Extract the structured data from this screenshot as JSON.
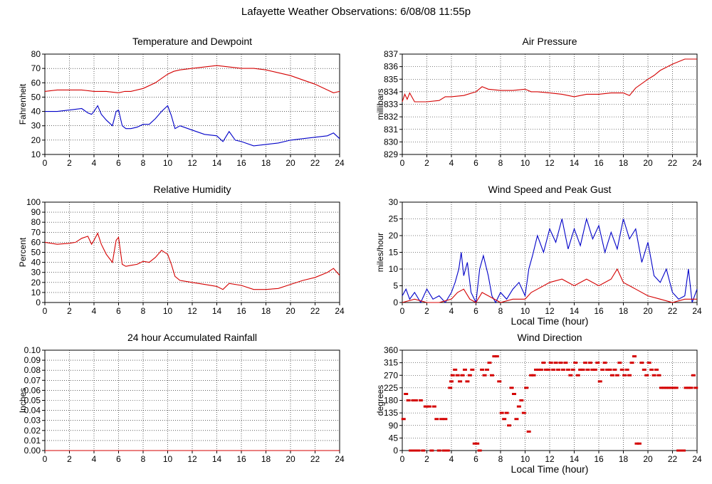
{
  "page": {
    "title": "Lafayette Weather Observations: 6/08/08 11:55p"
  },
  "colors": {
    "red": "#d40000",
    "blue": "#0000c8",
    "grid": "#000000"
  },
  "chart_data": [
    {
      "id": "temp",
      "type": "line",
      "title": "Temperature and Dewpoint",
      "xlabel": "",
      "ylabel": "Fahrenheit",
      "xlim": [
        0,
        24
      ],
      "ylim": [
        10,
        80
      ],
      "xticks": [
        0,
        2,
        4,
        6,
        8,
        10,
        12,
        14,
        16,
        18,
        20,
        22,
        24
      ],
      "yticks": [
        10,
        20,
        30,
        40,
        50,
        60,
        70,
        80
      ],
      "series": [
        {
          "color": "#d40000",
          "style": "line",
          "x": [
            0,
            1,
            2,
            3,
            4,
            5,
            6,
            6.5,
            7,
            8,
            9,
            9.5,
            10,
            10.5,
            11,
            12,
            13,
            14,
            15,
            16,
            17,
            18,
            19,
            20,
            21,
            22,
            23,
            23.5,
            24
          ],
          "y": [
            54,
            55,
            55,
            55,
            54,
            54,
            53,
            54,
            54,
            56,
            60,
            63,
            66,
            68,
            69,
            70,
            71,
            72,
            71,
            70,
            70,
            69,
            67,
            65,
            62,
            59,
            55,
            53,
            54
          ]
        },
        {
          "color": "#0000c8",
          "style": "line",
          "x": [
            0,
            1,
            2,
            3,
            3.5,
            3.8,
            4,
            4.3,
            4.6,
            5,
            5.5,
            5.8,
            6,
            6.3,
            6.6,
            7,
            7.5,
            8,
            8.5,
            9,
            9.5,
            10,
            10.3,
            10.6,
            11,
            12,
            13,
            14,
            14.5,
            15,
            15.5,
            16,
            17,
            18,
            19,
            20,
            21,
            22,
            23,
            23.5,
            24
          ],
          "y": [
            40,
            40,
            41,
            42,
            39,
            38,
            40,
            44,
            38,
            34,
            30,
            40,
            41,
            30,
            28,
            28,
            29,
            31,
            31,
            35,
            40,
            44,
            37,
            28,
            30,
            27,
            24,
            23,
            19,
            26,
            20,
            19,
            16,
            17,
            18,
            20,
            21,
            22,
            23,
            25,
            21
          ]
        }
      ]
    },
    {
      "id": "pressure",
      "type": "line",
      "title": "Air Pressure",
      "xlabel": "",
      "ylabel": "millibars",
      "xlim": [
        0,
        24
      ],
      "ylim": [
        829,
        837
      ],
      "xticks": [
        0,
        2,
        4,
        6,
        8,
        10,
        12,
        14,
        16,
        18,
        20,
        22,
        24
      ],
      "yticks": [
        829,
        830,
        831,
        832,
        833,
        834,
        835,
        836,
        837
      ],
      "series": [
        {
          "color": "#d40000",
          "style": "line",
          "x": [
            0,
            0.2,
            0.4,
            0.6,
            1,
            2,
            3,
            3.5,
            4,
            5,
            6,
            6.5,
            7,
            8,
            9,
            10,
            10.5,
            11,
            12,
            13,
            14,
            15,
            16,
            17,
            18,
            18.5,
            19,
            20,
            20.5,
            21,
            22,
            23,
            24
          ],
          "y": [
            833.2,
            833.8,
            833.4,
            833.9,
            833.2,
            833.2,
            833.3,
            833.6,
            833.6,
            833.7,
            834,
            834.4,
            834.2,
            834.1,
            834.1,
            834.2,
            834,
            834,
            833.9,
            833.8,
            833.6,
            833.8,
            833.8,
            833.9,
            833.9,
            833.7,
            834.3,
            835,
            835.3,
            835.7,
            836.2,
            836.6,
            836.6
          ]
        }
      ]
    },
    {
      "id": "humidity",
      "type": "line",
      "title": "Relative Humidity",
      "xlabel": "",
      "ylabel": "Percent",
      "xlim": [
        0,
        24
      ],
      "ylim": [
        0,
        100
      ],
      "xticks": [
        0,
        2,
        4,
        6,
        8,
        10,
        12,
        14,
        16,
        18,
        20,
        22,
        24
      ],
      "yticks": [
        0,
        10,
        20,
        30,
        40,
        50,
        60,
        70,
        80,
        90,
        100
      ],
      "series": [
        {
          "color": "#d40000",
          "style": "line",
          "x": [
            0,
            1,
            2,
            2.5,
            3,
            3.5,
            3.8,
            4,
            4.3,
            4.6,
            5,
            5.5,
            5.8,
            6,
            6.3,
            6.6,
            7,
            7.5,
            8,
            8.5,
            9,
            9.5,
            10,
            10.3,
            10.6,
            11,
            12,
            13,
            14,
            14.5,
            15,
            16,
            17,
            18,
            19,
            20,
            21,
            22,
            23,
            23.5,
            24
          ],
          "y": [
            60,
            58,
            59,
            60,
            64,
            66,
            58,
            62,
            69,
            58,
            48,
            40,
            62,
            65,
            38,
            36,
            37,
            38,
            41,
            40,
            45,
            52,
            48,
            38,
            26,
            22,
            20,
            18,
            16,
            13,
            19,
            17,
            13,
            13,
            14,
            18,
            22,
            25,
            30,
            34,
            27
          ]
        }
      ]
    },
    {
      "id": "wind",
      "type": "line",
      "title": "Wind Speed and Peak Gust",
      "xlabel": "Local Time (hour)",
      "ylabel": "miles/hour",
      "xlim": [
        0,
        24
      ],
      "ylim": [
        0,
        30
      ],
      "xticks": [
        0,
        2,
        4,
        6,
        8,
        10,
        12,
        14,
        16,
        18,
        20,
        22,
        24
      ],
      "yticks": [
        0,
        5,
        10,
        15,
        20,
        25,
        30
      ],
      "series": [
        {
          "color": "#0000c8",
          "style": "line",
          "x": [
            0,
            0.3,
            0.6,
            1,
            1.5,
            2,
            2.5,
            3,
            3.5,
            4,
            4.3,
            4.6,
            4.8,
            5,
            5.3,
            5.6,
            6,
            6.3,
            6.6,
            7,
            7.3,
            7.6,
            8,
            8.5,
            9,
            9.5,
            10,
            10.3,
            10.6,
            11,
            11.5,
            12,
            12.5,
            13,
            13.5,
            14,
            14.5,
            15,
            15.5,
            16,
            16.5,
            17,
            17.5,
            18,
            18.5,
            19,
            19.5,
            20,
            20.5,
            21,
            21.5,
            22,
            22.5,
            23,
            23.3,
            23.6,
            24
          ],
          "y": [
            2,
            4,
            1,
            3,
            0,
            4,
            1,
            2,
            0,
            3,
            6,
            10,
            15,
            8,
            12,
            3,
            0,
            10,
            14,
            8,
            2,
            0,
            3,
            1,
            4,
            6,
            2,
            10,
            14,
            20,
            15,
            22,
            18,
            25,
            16,
            22,
            17,
            25,
            19,
            23,
            15,
            21,
            16,
            25,
            19,
            22,
            12,
            18,
            8,
            6,
            10,
            3,
            1,
            2,
            10,
            0,
            4
          ]
        },
        {
          "color": "#d40000",
          "style": "line",
          "x": [
            0,
            1,
            2,
            3,
            4,
            4.5,
            5,
            5.5,
            6,
            6.5,
            7,
            8,
            9,
            10,
            10.5,
            11,
            11.5,
            12,
            13,
            14,
            15,
            16,
            17,
            17.5,
            18,
            19,
            20,
            21,
            22,
            23,
            24
          ],
          "y": [
            0,
            1,
            0,
            0,
            1,
            3,
            4,
            1,
            0,
            3,
            2,
            0,
            1,
            1,
            3,
            4,
            5,
            6,
            7,
            5,
            7,
            5,
            7,
            10,
            6,
            4,
            2,
            1,
            0,
            1,
            1
          ]
        }
      ]
    },
    {
      "id": "rain",
      "type": "line",
      "title": "24 hour Accumulated Rainfall",
      "xlabel": "",
      "ylabel": "Inches",
      "xlim": [
        0,
        24
      ],
      "ylim": [
        0,
        0.1
      ],
      "xticks": [
        0,
        2,
        4,
        6,
        8,
        10,
        12,
        14,
        16,
        18,
        20,
        22,
        24
      ],
      "yticks": [
        "0.00",
        "0.01",
        "0.02",
        "0.03",
        "0.04",
        "0.05",
        "0.06",
        "0.07",
        "0.08",
        "0.09",
        "0.10"
      ],
      "series": [
        {
          "color": "#d40000",
          "style": "line",
          "x": [
            0,
            24
          ],
          "y": [
            0,
            0
          ]
        }
      ]
    },
    {
      "id": "direction",
      "type": "scatter",
      "title": "Wind Direction",
      "xlabel": "Local Time (hour)",
      "ylabel": "degrees",
      "xlim": [
        0,
        24
      ],
      "ylim": [
        0,
        360
      ],
      "xticks": [
        0,
        2,
        4,
        6,
        8,
        10,
        12,
        14,
        16,
        18,
        20,
        22,
        24
      ],
      "yticks": [
        0,
        45,
        90,
        135,
        180,
        225,
        270,
        315,
        360
      ],
      "series": [
        {
          "color": "#d40000",
          "style": "points",
          "x": [
            0.1,
            0.3,
            0.5,
            0.7,
            0.9,
            1.0,
            1.1,
            1.3,
            1.5,
            1.7,
            1.9,
            2.0,
            2.2,
            2.4,
            2.6,
            2.8,
            3.0,
            3.2,
            3.4,
            3.5,
            3.7,
            3.9,
            4.0,
            4.1,
            4.3,
            4.5,
            4.7,
            4.9,
            5.1,
            5.3,
            5.5,
            5.7,
            5.9,
            6.1,
            6.3,
            6.5,
            6.7,
            6.9,
            7.1,
            7.3,
            7.5,
            7.7,
            7.9,
            8.1,
            8.3,
            8.5,
            8.7,
            8.9,
            9.1,
            9.3,
            9.5,
            9.7,
            9.9,
            10.1,
            10.3,
            10.5,
            10.7,
            10.9,
            11.1,
            11.3,
            11.5,
            11.7,
            11.9,
            12.1,
            12.3,
            12.5,
            12.7,
            12.9,
            13.1,
            13.3,
            13.5,
            13.7,
            13.9,
            14.1,
            14.3,
            14.5,
            14.7,
            14.9,
            15.1,
            15.3,
            15.5,
            15.7,
            15.9,
            16.1,
            16.3,
            16.5,
            16.7,
            16.9,
            17.1,
            17.3,
            17.5,
            17.7,
            17.9,
            18.1,
            18.3,
            18.5,
            18.7,
            18.9,
            19.1,
            19.3,
            19.5,
            19.7,
            19.9,
            20.1,
            20.3,
            20.5,
            20.7,
            20.9,
            21.1,
            21.3,
            21.5,
            21.7,
            21.9,
            22.1,
            22.3,
            22.5,
            22.7,
            22.9,
            23.1,
            23.3,
            23.5,
            23.7,
            23.9
          ],
          "y": [
            113,
            203,
            180,
            0,
            180,
            0,
            180,
            0,
            180,
            0,
            158,
            158,
            158,
            0,
            158,
            113,
            0,
            113,
            0,
            113,
            0,
            225,
            248,
            270,
            290,
            270,
            248,
            270,
            290,
            248,
            270,
            290,
            25,
            25,
            0,
            290,
            270,
            290,
            315,
            270,
            338,
            338,
            248,
            135,
            113,
            135,
            90,
            225,
            203,
            113,
            158,
            180,
            135,
            225,
            68,
            270,
            270,
            290,
            290,
            290,
            315,
            290,
            290,
            315,
            290,
            315,
            290,
            315,
            290,
            315,
            290,
            270,
            290,
            315,
            270,
            290,
            290,
            315,
            290,
            315,
            290,
            290,
            315,
            248,
            290,
            315,
            290,
            290,
            270,
            290,
            270,
            315,
            290,
            270,
            290,
            270,
            315,
            338,
            25,
            25,
            315,
            290,
            270,
            315,
            290,
            270,
            290,
            270,
            225,
            225,
            225,
            225,
            225,
            225,
            225,
            0,
            0,
            0,
            225,
            225,
            225,
            270,
            225
          ]
        }
      ]
    }
  ]
}
